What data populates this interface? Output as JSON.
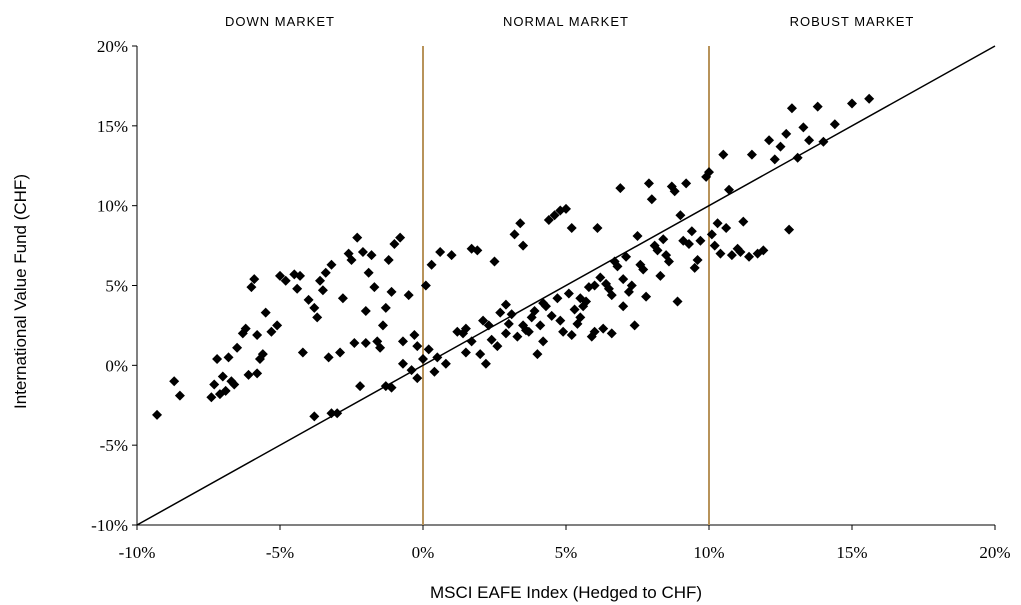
{
  "chart_data": {
    "type": "scatter",
    "title": "",
    "xlabel": "MSCI EAFE Index (Hedged to CHF)",
    "ylabel": "International Value Fund  (CHF)",
    "xlim": [
      -10,
      20
    ],
    "ylim": [
      -10,
      20
    ],
    "x_ticks": [
      -10,
      -5,
      0,
      5,
      10,
      15,
      20
    ],
    "y_ticks": [
      -10,
      -5,
      0,
      5,
      10,
      15,
      20
    ],
    "x_tick_labels": [
      "-10%",
      "-5%",
      "0%",
      "5%",
      "10%",
      "15%",
      "20%"
    ],
    "y_tick_labels": [
      "-10%",
      "-5%",
      "0%",
      "5%",
      "10%",
      "15%",
      "20%"
    ],
    "region_labels": [
      {
        "text": "DOWN MARKET",
        "x_center": -5
      },
      {
        "text": "NORMAL MARKET",
        "x_center": 5
      },
      {
        "text": "ROBUST MARKET",
        "x_center": 15
      }
    ],
    "vertical_lines": [
      0,
      10
    ],
    "vertical_line_color": "#b8935a",
    "reference_line": {
      "from": [
        -10,
        -10
      ],
      "to": [
        20,
        20
      ]
    },
    "marker": "diamond",
    "marker_color": "#000000",
    "grid": false,
    "points": [
      [
        -9.3,
        -3.1
      ],
      [
        -8.7,
        -1.0
      ],
      [
        -8.5,
        -1.9
      ],
      [
        -7.3,
        -1.2
      ],
      [
        -7.2,
        0.4
      ],
      [
        -7.1,
        -1.8
      ],
      [
        -7.0,
        -0.7
      ],
      [
        -6.9,
        -1.6
      ],
      [
        -6.8,
        0.5
      ],
      [
        -6.7,
        -1.0
      ],
      [
        -6.5,
        1.1
      ],
      [
        -6.2,
        2.3
      ],
      [
        -6.1,
        -0.6
      ],
      [
        -6.0,
        4.9
      ],
      [
        -5.9,
        5.4
      ],
      [
        -5.8,
        1.9
      ],
      [
        -5.7,
        0.4
      ],
      [
        -5.5,
        3.3
      ],
      [
        -5.3,
        2.1
      ],
      [
        -5.0,
        5.6
      ],
      [
        -4.8,
        5.3
      ],
      [
        -4.5,
        5.7
      ],
      [
        -4.3,
        5.6
      ],
      [
        -4.2,
        0.8
      ],
      [
        -4.0,
        4.1
      ],
      [
        -3.8,
        3.6
      ],
      [
        -3.7,
        3.0
      ],
      [
        -3.5,
        4.7
      ],
      [
        -3.4,
        5.8
      ],
      [
        -3.3,
        0.5
      ],
      [
        -3.2,
        6.3
      ],
      [
        -3.0,
        -3.0
      ],
      [
        -2.9,
        0.8
      ],
      [
        -2.6,
        7.0
      ],
      [
        -2.5,
        6.6
      ],
      [
        -2.4,
        1.4
      ],
      [
        -2.3,
        8.0
      ],
      [
        -2.1,
        7.1
      ],
      [
        -2.0,
        1.4
      ],
      [
        -1.9,
        5.8
      ],
      [
        -1.8,
        6.9
      ],
      [
        -1.7,
        4.9
      ],
      [
        -1.6,
        1.5
      ],
      [
        -1.5,
        1.1
      ],
      [
        -1.3,
        3.6
      ],
      [
        -1.2,
        6.6
      ],
      [
        -1.1,
        4.6
      ],
      [
        -1.0,
        7.6
      ],
      [
        -0.8,
        8.0
      ],
      [
        -0.7,
        1.5
      ],
      [
        -0.5,
        4.4
      ],
      [
        -0.3,
        1.9
      ],
      [
        -0.2,
        1.2
      ],
      [
        0.1,
        5.0
      ],
      [
        0.3,
        6.3
      ],
      [
        0.5,
        0.5
      ],
      [
        0.6,
        7.1
      ],
      [
        0.8,
        0.1
      ],
      [
        1.0,
        6.9
      ],
      [
        1.2,
        2.1
      ],
      [
        1.5,
        2.3
      ],
      [
        1.7,
        7.3
      ],
      [
        1.9,
        7.2
      ],
      [
        2.0,
        0.7
      ],
      [
        2.3,
        2.5
      ],
      [
        2.5,
        6.5
      ],
      [
        2.7,
        3.3
      ],
      [
        2.9,
        2.0
      ],
      [
        3.0,
        2.6
      ],
      [
        3.2,
        8.2
      ],
      [
        3.4,
        8.9
      ],
      [
        3.5,
        7.5
      ],
      [
        3.7,
        2.1
      ],
      [
        3.9,
        3.4
      ],
      [
        4.0,
        0.7
      ],
      [
        4.2,
        1.5
      ],
      [
        4.4,
        9.1
      ],
      [
        4.6,
        9.4
      ],
      [
        4.8,
        9.7
      ],
      [
        5.0,
        9.8
      ],
      [
        5.2,
        8.6
      ],
      [
        5.3,
        3.5
      ],
      [
        5.5,
        3.0
      ],
      [
        5.7,
        4.0
      ],
      [
        5.9,
        1.8
      ],
      [
        6.1,
        8.6
      ],
      [
        6.3,
        2.3
      ],
      [
        6.5,
        4.8
      ],
      [
        6.7,
        6.5
      ],
      [
        6.9,
        11.1
      ],
      [
        7.0,
        5.4
      ],
      [
        7.2,
        4.6
      ],
      [
        7.4,
        2.5
      ],
      [
        7.5,
        8.1
      ],
      [
        7.7,
        6.0
      ],
      [
        7.9,
        11.4
      ],
      [
        8.0,
        10.4
      ],
      [
        8.2,
        7.2
      ],
      [
        8.3,
        5.6
      ],
      [
        8.5,
        6.9
      ],
      [
        8.7,
        11.2
      ],
      [
        8.8,
        10.9
      ],
      [
        9.0,
        9.4
      ],
      [
        9.2,
        11.4
      ],
      [
        9.3,
        7.6
      ],
      [
        9.4,
        8.4
      ],
      [
        9.6,
        6.6
      ],
      [
        9.7,
        7.8
      ],
      [
        9.9,
        11.8
      ],
      [
        10.0,
        12.1
      ],
      [
        10.2,
        7.5
      ],
      [
        10.4,
        7.0
      ],
      [
        10.5,
        13.2
      ],
      [
        10.7,
        11.0
      ],
      [
        10.8,
        6.9
      ],
      [
        11.0,
        7.3
      ],
      [
        11.2,
        9.0
      ],
      [
        11.4,
        6.8
      ],
      [
        11.5,
        13.2
      ],
      [
        11.7,
        7.0
      ],
      [
        11.9,
        7.2
      ],
      [
        12.1,
        14.1
      ],
      [
        12.3,
        12.9
      ],
      [
        12.5,
        13.7
      ],
      [
        12.7,
        14.5
      ],
      [
        12.8,
        8.5
      ],
      [
        12.9,
        16.1
      ],
      [
        13.1,
        13.0
      ],
      [
        13.3,
        14.9
      ],
      [
        13.5,
        14.1
      ],
      [
        13.8,
        16.2
      ],
      [
        14.0,
        14.0
      ],
      [
        14.4,
        15.1
      ],
      [
        15.0,
        16.4
      ],
      [
        15.6,
        16.7
      ],
      [
        -1.3,
        -1.3
      ],
      [
        -1.1,
        -1.4
      ],
      [
        -0.7,
        0.1
      ],
      [
        -0.4,
        -0.3
      ],
      [
        -0.2,
        -0.8
      ],
      [
        0.0,
        0.4
      ],
      [
        0.2,
        1.0
      ],
      [
        0.4,
        -0.4
      ],
      [
        1.5,
        0.8
      ],
      [
        1.7,
        1.5
      ],
      [
        2.1,
        2.8
      ],
      [
        2.4,
        1.6
      ],
      [
        2.6,
        1.2
      ],
      [
        2.9,
        3.8
      ],
      [
        3.1,
        3.2
      ],
      [
        3.3,
        1.8
      ],
      [
        3.6,
        2.2
      ],
      [
        3.8,
        3.0
      ],
      [
        4.1,
        2.5
      ],
      [
        4.3,
        3.7
      ],
      [
        4.5,
        3.1
      ],
      [
        4.7,
        4.2
      ],
      [
        4.9,
        2.1
      ],
      [
        5.1,
        4.5
      ],
      [
        5.4,
        2.6
      ],
      [
        5.6,
        3.7
      ],
      [
        5.8,
        4.9
      ],
      [
        6.0,
        2.1
      ],
      [
        6.2,
        5.5
      ],
      [
        6.4,
        5.1
      ],
      [
        6.6,
        4.4
      ],
      [
        6.8,
        6.2
      ],
      [
        7.1,
        6.8
      ],
      [
        7.3,
        5.0
      ],
      [
        7.6,
        6.3
      ],
      [
        7.8,
        4.3
      ],
      [
        8.1,
        7.5
      ],
      [
        8.4,
        7.9
      ],
      [
        8.6,
        6.5
      ],
      [
        8.9,
        4.0
      ],
      [
        9.1,
        7.8
      ],
      [
        9.5,
        6.1
      ],
      [
        10.1,
        8.2
      ],
      [
        10.3,
        8.9
      ],
      [
        10.6,
        8.6
      ],
      [
        11.1,
        7.1
      ],
      [
        -3.8,
        -3.2
      ],
      [
        -3.2,
        -3.0
      ],
      [
        -2.2,
        -1.3
      ],
      [
        -6.6,
        -1.2
      ],
      [
        -7.4,
        -2.0
      ],
      [
        -5.8,
        -0.5
      ],
      [
        -3.6,
        5.3
      ],
      [
        -2.8,
        4.2
      ],
      [
        -4.4,
        4.8
      ],
      [
        -5.1,
        2.5
      ],
      [
        -5.6,
        0.7
      ],
      [
        -6.3,
        2.0
      ],
      [
        -2.0,
        3.4
      ],
      [
        -1.4,
        2.5
      ],
      [
        4.8,
        2.8
      ],
      [
        5.2,
        1.9
      ],
      [
        6.6,
        2.0
      ],
      [
        7.0,
        3.7
      ],
      [
        3.5,
        2.5
      ],
      [
        5.5,
        4.2
      ],
      [
        6.0,
        5.0
      ],
      [
        4.2,
        3.9
      ],
      [
        1.4,
        2.0
      ],
      [
        2.2,
        0.1
      ]
    ]
  }
}
